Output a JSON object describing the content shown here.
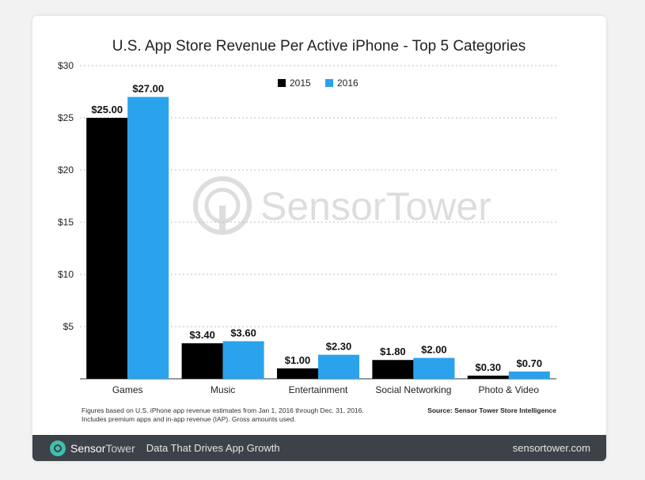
{
  "chart_data": {
    "type": "bar",
    "title": "U.S. App Store Revenue Per Active iPhone - Top 5 Categories",
    "categories": [
      "Games",
      "Music",
      "Entertainment",
      "Social Networking",
      "Photo & Video"
    ],
    "series": [
      {
        "name": "2015",
        "values": [
          25.0,
          3.4,
          1.0,
          1.8,
          0.3
        ],
        "labels": [
          "$25.00",
          "$3.40",
          "$1.00",
          "$1.80",
          "$0.30"
        ],
        "color": "#000000"
      },
      {
        "name": "2016",
        "values": [
          27.0,
          3.6,
          2.3,
          2.0,
          0.7
        ],
        "labels": [
          "$27.00",
          "$3.60",
          "$2.30",
          "$2.00",
          "$0.70"
        ],
        "color": "#2aa3ec"
      }
    ],
    "ylim": [
      0,
      30
    ],
    "yticks": [
      5,
      10,
      15,
      20,
      25,
      30
    ],
    "ytick_labels": [
      "$5",
      "$10",
      "$15",
      "$20",
      "$25",
      "$30"
    ],
    "grid": true,
    "legend_position": "top-center",
    "watermark_text": "SensorTower",
    "footnote_lines": [
      "Figures based on U.S. iPhone app revenue estimates from Jan 1, 2016 through Dec. 31, 2016.",
      "Includes premium apps and in-app revenue (IAP). Gross amounts used."
    ],
    "source": "Source: Sensor Tower Store Intelligence"
  },
  "footer": {
    "brand_first": "Sensor",
    "brand_second": "Tower",
    "tagline": "Data That Drives App Growth",
    "site": "sensortower.com"
  }
}
